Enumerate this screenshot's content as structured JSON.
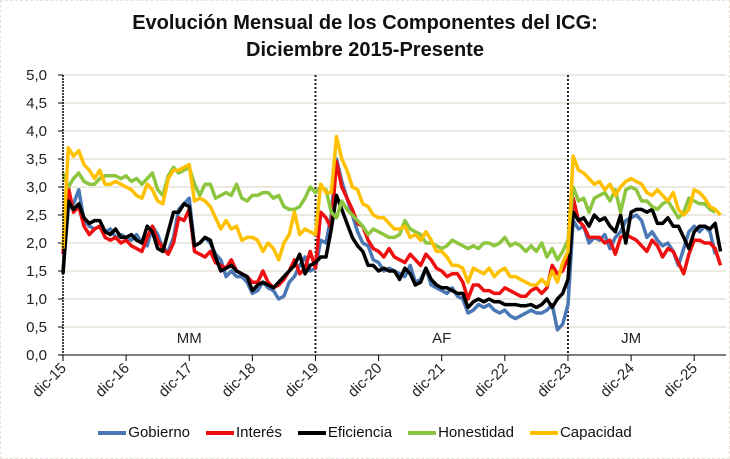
{
  "chart_data": {
    "type": "line",
    "title": "Evolución Mensual de los Componentes del ICG:",
    "subtitle": "Diciembre 2015-Presente",
    "xlabel": "",
    "ylabel": "",
    "ylim": [
      0,
      5
    ],
    "yticks": [
      "0,0",
      "0,5",
      "1,0",
      "1,5",
      "2,0",
      "2,5",
      "3,0",
      "3,5",
      "4,0",
      "4,5",
      "5,0"
    ],
    "ytick_values": [
      0,
      0.5,
      1,
      1.5,
      2,
      2.5,
      3,
      3.5,
      4,
      4.5,
      5
    ],
    "xtick_labels": [
      "dic-15",
      "dic-16",
      "dic-17",
      "dic-18",
      "dic-19",
      "dic-20",
      "dic-21",
      "dic-22",
      "dic-23",
      "dic-24",
      "dic-25"
    ],
    "xtick_months": [
      0,
      12,
      24,
      36,
      48,
      60,
      72,
      84,
      96,
      108,
      120
    ],
    "grid": true,
    "legend_position": "bottom",
    "period_markers": [
      48,
      96
    ],
    "period_labels": [
      {
        "label": "MM",
        "month": 24
      },
      {
        "label": "AF",
        "month": 72
      },
      {
        "label": "JM",
        "month": 108
      }
    ],
    "series": [
      {
        "name": "Gobierno",
        "color": "#4a78b5",
        "values": [
          1.5,
          2.6,
          2.7,
          2.95,
          2.4,
          2.3,
          2.25,
          2.3,
          2.2,
          2.25,
          2.1,
          2.15,
          2.1,
          2.05,
          2.15,
          2.0,
          1.95,
          2.3,
          2.15,
          1.9,
          1.85,
          2.1,
          2.6,
          2.7,
          2.8,
          1.95,
          2.0,
          2.1,
          2.0,
          1.8,
          1.7,
          1.4,
          1.5,
          1.4,
          1.4,
          1.3,
          1.1,
          1.15,
          1.3,
          1.2,
          1.15,
          1.0,
          1.05,
          1.3,
          1.4,
          1.6,
          1.75,
          1.5,
          1.55,
          2.05,
          2.0,
          2.5,
          3.5,
          3.1,
          2.8,
          2.5,
          2.2,
          2.0,
          1.95,
          1.7,
          1.65,
          1.5,
          1.55,
          1.5,
          1.45,
          1.4,
          1.6,
          1.3,
          1.35,
          1.55,
          1.25,
          1.2,
          1.15,
          1.1,
          1.2,
          1.05,
          1.0,
          0.75,
          0.8,
          0.9,
          0.85,
          0.9,
          0.8,
          0.75,
          0.8,
          0.7,
          0.65,
          0.7,
          0.75,
          0.8,
          0.75,
          0.75,
          0.8,
          0.9,
          0.45,
          0.55,
          0.9,
          2.4,
          2.25,
          2.3,
          2.0,
          2.1,
          2.05,
          2.15,
          1.9,
          2.1,
          2.2,
          2.4,
          2.45,
          2.5,
          2.4,
          2.1,
          2.2,
          2.05,
          1.95,
          2.0,
          1.85,
          1.6,
          1.9,
          2.2,
          2.3,
          2.2,
          2.3,
          2.2,
          1.8
        ]
      },
      {
        "name": "Interés",
        "color": "#ee1010",
        "values": [
          1.8,
          3.0,
          2.55,
          2.65,
          2.3,
          2.15,
          2.25,
          2.3,
          2.1,
          2.05,
          2.1,
          2.0,
          2.05,
          1.95,
          1.9,
          1.85,
          2.1,
          2.3,
          2.05,
          1.9,
          1.8,
          2.0,
          2.45,
          2.4,
          2.6,
          1.85,
          1.8,
          1.75,
          1.85,
          1.65,
          1.6,
          1.55,
          1.7,
          1.5,
          1.45,
          1.4,
          1.3,
          1.3,
          1.5,
          1.3,
          1.2,
          1.25,
          1.35,
          1.5,
          1.7,
          1.45,
          1.55,
          1.85,
          1.55,
          2.55,
          2.45,
          2.25,
          3.45,
          3.0,
          2.8,
          2.6,
          2.35,
          2.3,
          2.05,
          1.9,
          1.85,
          1.75,
          1.9,
          1.75,
          1.7,
          1.65,
          1.8,
          1.7,
          1.6,
          1.8,
          1.7,
          1.55,
          1.5,
          1.4,
          1.45,
          1.45,
          1.3,
          1.0,
          1.25,
          1.25,
          1.15,
          1.15,
          1.1,
          1.1,
          1.2,
          1.15,
          1.1,
          1.05,
          1.05,
          1.15,
          1.2,
          1.1,
          1.2,
          1.6,
          1.45,
          1.5,
          1.75,
          2.8,
          2.4,
          2.3,
          2.1,
          2.1,
          2.1,
          2.0,
          2.05,
          1.8,
          2.1,
          2.15,
          2.1,
          2.05,
          1.95,
          1.85,
          2.05,
          1.95,
          1.75,
          1.9,
          1.85,
          1.65,
          1.45,
          1.8,
          2.05,
          2.05,
          2.0,
          2.0,
          1.9,
          1.6
        ]
      },
      {
        "name": "Eficiencia",
        "color": "#000000",
        "values": [
          1.45,
          2.75,
          2.6,
          2.7,
          2.45,
          2.35,
          2.4,
          2.4,
          2.2,
          2.15,
          2.25,
          2.1,
          2.1,
          2.15,
          2.05,
          2.0,
          2.3,
          2.2,
          1.9,
          1.85,
          2.2,
          2.55,
          2.55,
          2.7,
          2.65,
          1.95,
          2.0,
          2.1,
          2.05,
          1.75,
          1.5,
          1.55,
          1.6,
          1.5,
          1.45,
          1.4,
          1.15,
          1.25,
          1.3,
          1.25,
          1.2,
          1.3,
          1.4,
          1.5,
          1.6,
          1.8,
          1.45,
          1.6,
          1.65,
          1.75,
          1.75,
          2.25,
          2.85,
          2.6,
          2.35,
          2.1,
          1.95,
          1.85,
          1.6,
          1.6,
          1.5,
          1.55,
          1.5,
          1.5,
          1.35,
          1.55,
          1.45,
          1.25,
          1.3,
          1.55,
          1.35,
          1.25,
          1.2,
          1.2,
          1.15,
          1.1,
          1.1,
          0.85,
          0.95,
          1.0,
          0.95,
          1.0,
          0.95,
          0.95,
          0.9,
          0.9,
          0.9,
          0.88,
          0.88,
          0.9,
          0.85,
          0.9,
          1.0,
          0.85,
          1.0,
          1.1,
          1.35,
          2.55,
          2.4,
          2.45,
          2.3,
          2.5,
          2.4,
          2.45,
          2.3,
          2.2,
          2.5,
          2.0,
          2.55,
          2.6,
          2.6,
          2.55,
          2.6,
          2.35,
          2.35,
          2.45,
          2.3,
          2.3,
          2.1,
          1.9,
          2.2,
          2.3,
          2.3,
          2.25,
          2.35,
          1.85
        ]
      },
      {
        "name": "Honestidad",
        "color": "#8cc63f",
        "values": [
          3.25,
          3.0,
          3.15,
          3.25,
          3.1,
          3.05,
          3.05,
          3.15,
          3.2,
          3.2,
          3.2,
          3.15,
          3.2,
          3.1,
          3.15,
          3.05,
          3.15,
          3.25,
          2.95,
          2.85,
          3.2,
          3.35,
          3.25,
          3.3,
          3.35,
          3.05,
          2.85,
          3.05,
          3.05,
          2.8,
          2.85,
          2.9,
          2.85,
          3.05,
          2.8,
          2.75,
          2.85,
          2.85,
          2.9,
          2.9,
          2.8,
          2.85,
          2.65,
          2.6,
          2.6,
          2.65,
          2.8,
          3.0,
          2.9,
          3.0,
          2.95,
          2.55,
          2.45,
          2.75,
          2.6,
          2.5,
          2.4,
          2.3,
          2.15,
          2.25,
          2.2,
          2.15,
          2.1,
          2.1,
          2.15,
          2.4,
          2.25,
          2.2,
          2.15,
          2.0,
          2.0,
          1.95,
          1.9,
          1.95,
          2.05,
          2.0,
          1.95,
          1.9,
          1.95,
          1.9,
          2.0,
          2.0,
          1.95,
          2.0,
          2.1,
          1.95,
          2.0,
          1.95,
          1.85,
          1.95,
          1.85,
          2.0,
          1.75,
          1.9,
          1.7,
          1.85,
          2.05,
          3.0,
          2.75,
          2.8,
          2.55,
          2.8,
          2.85,
          2.9,
          2.75,
          2.95,
          2.55,
          2.95,
          3.0,
          2.95,
          2.75,
          2.75,
          2.65,
          2.6,
          2.7,
          2.75,
          2.6,
          2.45,
          2.55,
          2.8,
          2.75,
          2.7,
          2.7,
          2.6,
          2.55
        ]
      },
      {
        "name": "Capacidad",
        "color": "#ffc000",
        "values": [
          1.9,
          3.7,
          3.55,
          3.65,
          3.4,
          3.3,
          3.15,
          3.3,
          3.05,
          3.05,
          3.1,
          3.05,
          3.0,
          2.95,
          2.85,
          2.8,
          3.05,
          2.95,
          2.75,
          2.7,
          3.15,
          3.3,
          3.3,
          3.35,
          3.4,
          2.75,
          2.8,
          2.75,
          2.65,
          2.45,
          2.25,
          2.4,
          2.25,
          2.3,
          2.05,
          2.1,
          2.1,
          2.05,
          1.85,
          2.0,
          1.9,
          1.7,
          2.0,
          2.15,
          2.55,
          2.15,
          2.25,
          2.2,
          2.15,
          3.05,
          2.9,
          2.9,
          3.9,
          3.5,
          3.3,
          3.0,
          2.95,
          2.7,
          2.65,
          2.5,
          2.45,
          2.45,
          2.35,
          2.25,
          2.25,
          2.3,
          2.1,
          2.15,
          2.05,
          2.2,
          2.05,
          1.85,
          1.85,
          1.75,
          1.6,
          1.6,
          1.55,
          1.3,
          1.55,
          1.5,
          1.45,
          1.55,
          1.4,
          1.5,
          1.55,
          1.4,
          1.4,
          1.35,
          1.3,
          1.25,
          1.25,
          1.35,
          1.25,
          1.5,
          1.3,
          1.65,
          1.85,
          3.55,
          3.3,
          3.25,
          3.15,
          3.05,
          3.1,
          2.95,
          3.05,
          2.85,
          3.0,
          3.1,
          3.15,
          3.1,
          3.05,
          2.9,
          2.85,
          2.95,
          2.85,
          2.75,
          2.9,
          2.6,
          2.5,
          2.6,
          2.95,
          2.9,
          2.8,
          2.65,
          2.6,
          2.5
        ]
      }
    ]
  }
}
